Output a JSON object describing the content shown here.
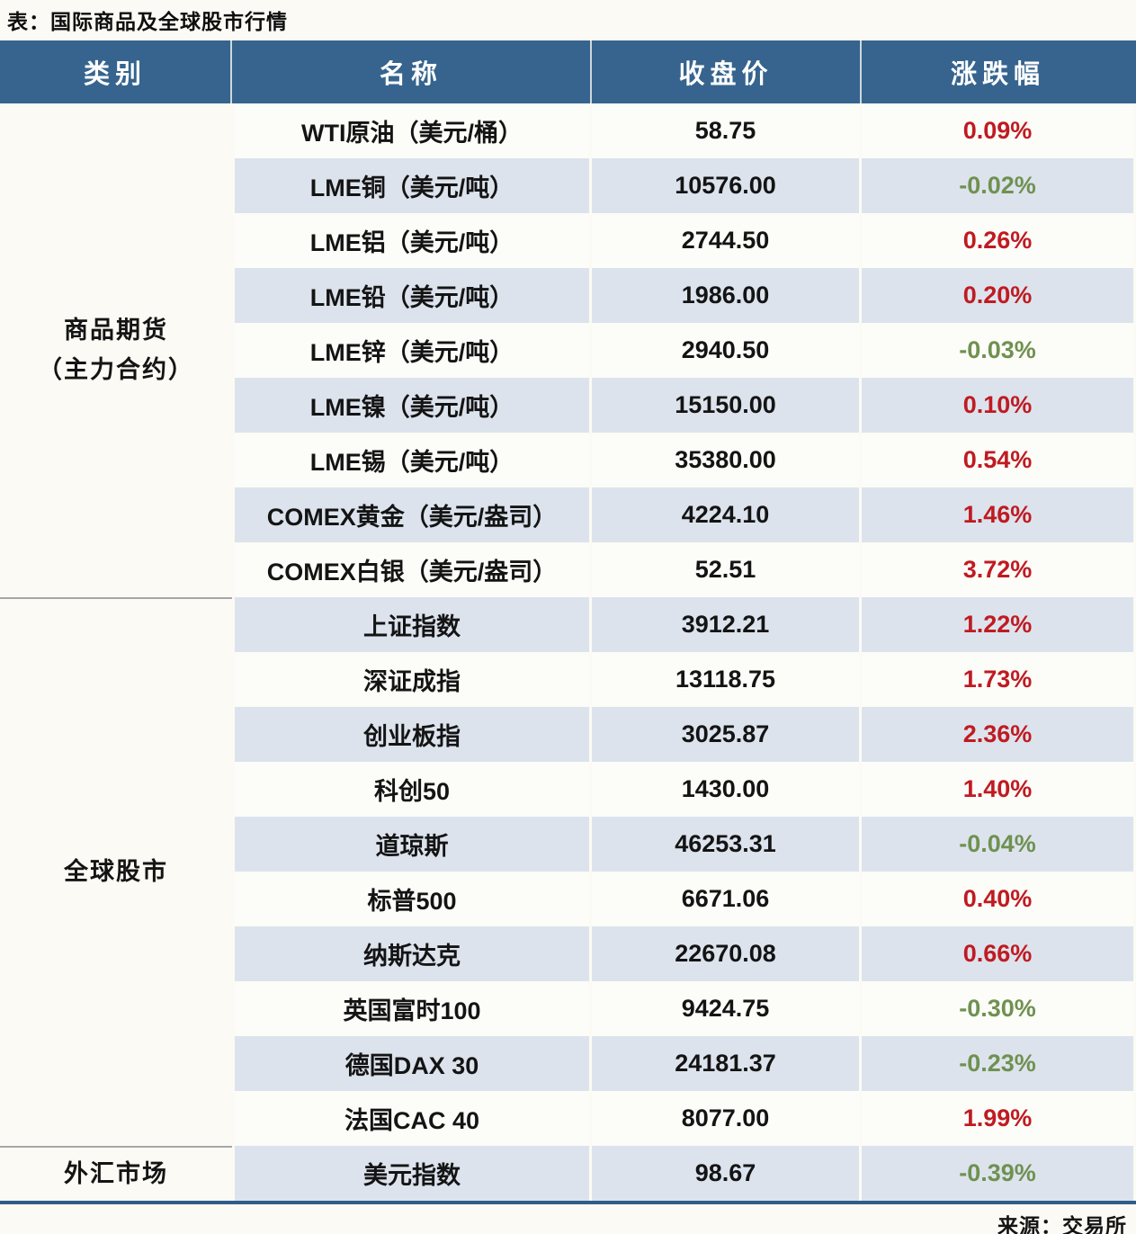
{
  "title": "表：国际商品及全球股市行情",
  "source": "来源：交易所",
  "colors": {
    "header_bg": "#36648E",
    "stripe_row_bg": "#DCE3ED",
    "white_row_bg": "#FCFCF8",
    "up_red": "#BF1B21",
    "down_green": "#6F9150",
    "bottom_border": "#2F5D8A",
    "category_divider": "#A6A6A6"
  },
  "chart_data": {
    "type": "table",
    "columns": [
      "类别",
      "名称",
      "收盘价",
      "涨跌幅"
    ],
    "groups": [
      {
        "category": "商品期货\n（主力合约）",
        "rows": [
          {
            "name": "WTI原油（美元/桶）",
            "close": "58.75",
            "change": "0.09%",
            "direction": "up"
          },
          {
            "name": "LME铜（美元/吨）",
            "close": "10576.00",
            "change": "-0.02%",
            "direction": "down"
          },
          {
            "name": "LME铝（美元/吨）",
            "close": "2744.50",
            "change": "0.26%",
            "direction": "up"
          },
          {
            "name": "LME铅（美元/吨）",
            "close": "1986.00",
            "change": "0.20%",
            "direction": "up"
          },
          {
            "name": "LME锌（美元/吨）",
            "close": "2940.50",
            "change": "-0.03%",
            "direction": "down"
          },
          {
            "name": "LME镍（美元/吨）",
            "close": "15150.00",
            "change": "0.10%",
            "direction": "up"
          },
          {
            "name": "LME锡（美元/吨）",
            "close": "35380.00",
            "change": "0.54%",
            "direction": "up"
          },
          {
            "name": "COMEX黄金（美元/盎司）",
            "close": "4224.10",
            "change": "1.46%",
            "direction": "up"
          },
          {
            "name": "COMEX白银（美元/盎司）",
            "close": "52.51",
            "change": "3.72%",
            "direction": "up"
          }
        ]
      },
      {
        "category": "全球股市",
        "rows": [
          {
            "name": "上证指数",
            "close": "3912.21",
            "change": "1.22%",
            "direction": "up"
          },
          {
            "name": "深证成指",
            "close": "13118.75",
            "change": "1.73%",
            "direction": "up"
          },
          {
            "name": "创业板指",
            "close": "3025.87",
            "change": "2.36%",
            "direction": "up"
          },
          {
            "name": "科创50",
            "close": "1430.00",
            "change": "1.40%",
            "direction": "up"
          },
          {
            "name": "道琼斯",
            "close": "46253.31",
            "change": "-0.04%",
            "direction": "down"
          },
          {
            "name": "标普500",
            "close": "6671.06",
            "change": "0.40%",
            "direction": "up"
          },
          {
            "name": "纳斯达克",
            "close": "22670.08",
            "change": "0.66%",
            "direction": "up"
          },
          {
            "name": "英国富时100",
            "close": "9424.75",
            "change": "-0.30%",
            "direction": "down"
          },
          {
            "name": "德国DAX 30",
            "close": "24181.37",
            "change": "-0.23%",
            "direction": "down"
          },
          {
            "name": "法国CAC 40",
            "close": "8077.00",
            "change": "1.99%",
            "direction": "up"
          }
        ]
      },
      {
        "category": "外汇市场",
        "rows": [
          {
            "name": "美元指数",
            "close": "98.67",
            "change": "-0.39%",
            "direction": "down"
          }
        ]
      }
    ]
  }
}
